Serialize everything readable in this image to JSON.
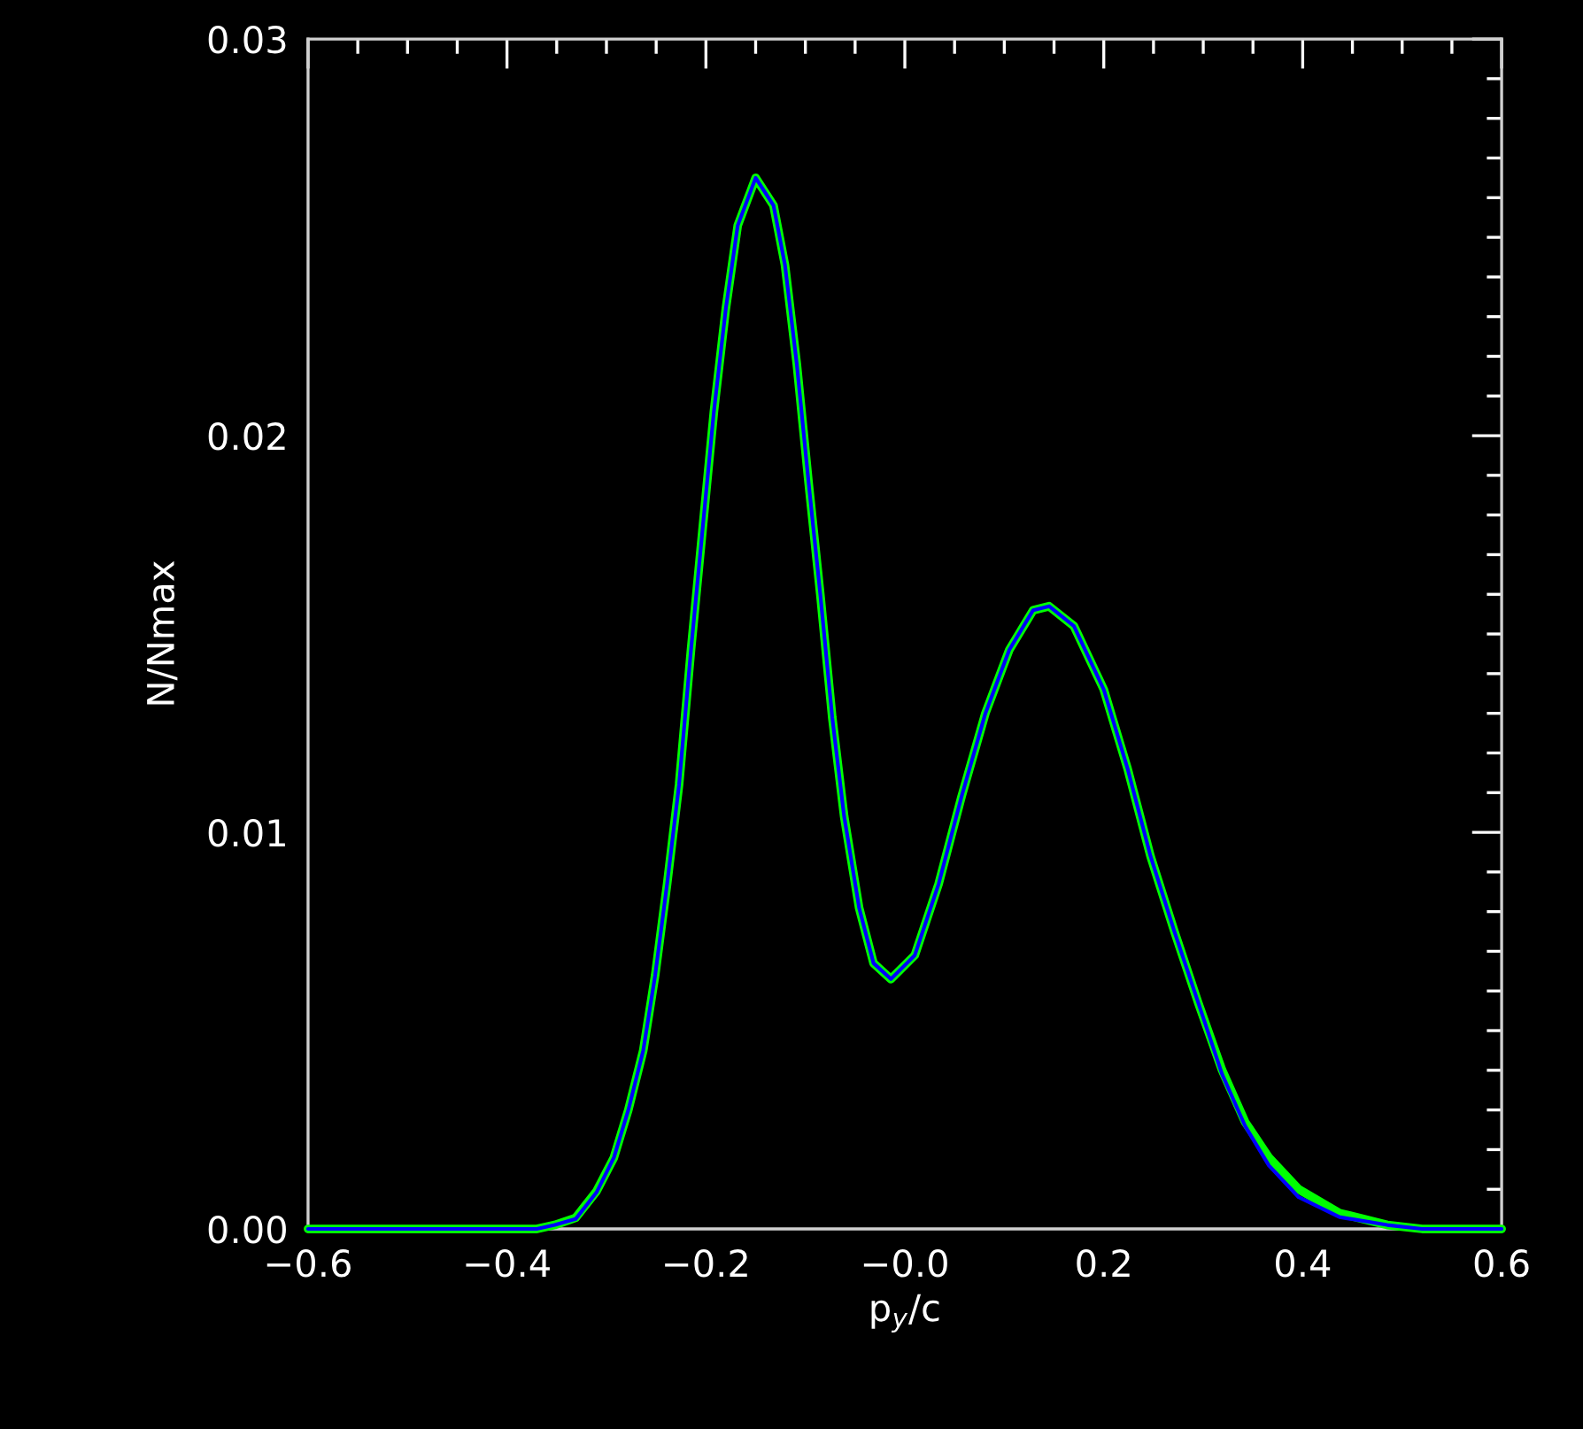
{
  "chart_data": {
    "type": "line",
    "xlabel": "p$_{y}$/c",
    "ylabel": "N/Nmax",
    "xlim": [
      -0.6,
      0.6
    ],
    "ylim": [
      0,
      0.03
    ],
    "xticks": [
      {
        "value": -0.6,
        "label": "−0.6"
      },
      {
        "value": -0.55,
        "label": null
      },
      {
        "value": -0.5,
        "label": null
      },
      {
        "value": -0.45,
        "label": null
      },
      {
        "value": -0.4,
        "label": "−0.4"
      },
      {
        "value": -0.35,
        "label": null
      },
      {
        "value": -0.3,
        "label": null
      },
      {
        "value": -0.25,
        "label": null
      },
      {
        "value": -0.2,
        "label": "−0.2"
      },
      {
        "value": -0.15,
        "label": null
      },
      {
        "value": -0.1,
        "label": null
      },
      {
        "value": -0.05,
        "label": null
      },
      {
        "value": 0,
        "label": "−0.0"
      },
      {
        "value": 0.05,
        "label": null
      },
      {
        "value": 0.1,
        "label": null
      },
      {
        "value": 0.15,
        "label": null
      },
      0.2,
      {
        "value": 0.25,
        "label": null
      },
      {
        "value": 0.3,
        "label": null
      },
      {
        "value": 0.35,
        "label": null
      },
      0.4,
      {
        "value": 0.45,
        "label": null
      },
      {
        "value": 0.5,
        "label": null
      },
      {
        "value": 0.55,
        "label": null
      },
      0.6
    ],
    "yticks": [
      {
        "value": 0,
        "label": "0.00"
      },
      {
        "value": 0.001,
        "label": null
      },
      {
        "value": 0.002,
        "label": null
      },
      {
        "value": 0.003,
        "label": null
      },
      {
        "value": 0.004,
        "label": null
      },
      {
        "value": 0.005,
        "label": null
      },
      {
        "value": 0.006,
        "label": null
      },
      {
        "value": 0.007,
        "label": null
      },
      {
        "value": 0.008,
        "label": null
      },
      {
        "value": 0.009,
        "label": null
      },
      {
        "value": 0.01,
        "label": "0.01"
      },
      {
        "value": 0.011,
        "label": null
      },
      {
        "value": 0.012,
        "label": null
      },
      {
        "value": 0.013,
        "label": null
      },
      {
        "value": 0.014,
        "label": null
      },
      {
        "value": 0.015,
        "label": null
      },
      {
        "value": 0.016,
        "label": null
      },
      {
        "value": 0.017,
        "label": null
      },
      {
        "value": 0.018,
        "label": null
      },
      {
        "value": 0.019,
        "label": null
      },
      {
        "value": 0.02,
        "label": "0.02"
      },
      {
        "value": 0.021,
        "label": null
      },
      {
        "value": 0.022,
        "label": null
      },
      {
        "value": 0.023,
        "label": null
      },
      {
        "value": 0.024,
        "label": null
      },
      {
        "value": 0.025,
        "label": null
      },
      {
        "value": 0.026,
        "label": null
      },
      {
        "value": 0.027,
        "label": null
      },
      {
        "value": 0.028,
        "label": null
      },
      {
        "value": 0.029,
        "label": null
      },
      {
        "value": 0.03,
        "label": "0.03"
      }
    ],
    "x": [
      -0.6,
      -0.37,
      -0.352,
      -0.331,
      -0.31,
      -0.2925,
      -0.278,
      -0.263,
      -0.251,
      -0.239,
      -0.227,
      -0.215,
      -0.2035,
      -0.192,
      -0.18,
      -0.168,
      -0.15,
      -0.132,
      -0.1205,
      -0.1086,
      -0.0967,
      -0.085,
      -0.073,
      -0.061,
      -0.046,
      -0.0315,
      -0.014,
      0.01,
      0.034,
      0.057,
      0.081,
      0.105,
      0.129,
      0.145,
      0.17,
      0.2,
      0.224,
      0.247,
      0.271,
      0.295,
      0.319,
      0.342,
      0.366,
      0.396,
      0.437,
      0.485,
      0.52,
      0.6
    ],
    "series": [
      {
        "color": "#00ff00",
        "values": [
          0,
          0,
          0.0001,
          0.00028,
          0.00095,
          0.0018,
          0.003,
          0.0045,
          0.0064,
          0.0087,
          0.0112,
          0.0146,
          0.0176,
          0.0206,
          0.0232,
          0.0253,
          0.0265,
          0.0258,
          0.0243,
          0.0218,
          0.0188,
          0.016,
          0.0129,
          0.0104,
          0.0081,
          0.0067,
          0.0063,
          0.0069,
          0.0087,
          0.0109,
          0.013,
          0.0146,
          0.0156,
          0.0157,
          0.0152,
          0.0136,
          0.0116,
          0.0094,
          0.0075,
          0.0057,
          0.004,
          0.0027,
          0.0018,
          0.001,
          0.0004,
          0.0001,
          0,
          0
        ]
      },
      {
        "color": "#0000ff",
        "values": [
          0,
          0,
          0.0001,
          0.00025,
          0.00092,
          0.0018,
          0.003,
          0.0045,
          0.0064,
          0.0087,
          0.0112,
          0.0146,
          0.0176,
          0.0206,
          0.0232,
          0.0253,
          0.0265,
          0.0258,
          0.0243,
          0.0218,
          0.0188,
          0.016,
          0.0129,
          0.0104,
          0.0081,
          0.0067,
          0.0063,
          0.0069,
          0.0087,
          0.0109,
          0.013,
          0.0146,
          0.0156,
          0.0157,
          0.0152,
          0.0136,
          0.0116,
          0.0094,
          0.0075,
          0.0057,
          0.0039,
          0.0026,
          0.0016,
          0.0008,
          0.0003,
          0.0001,
          0,
          0
        ]
      }
    ]
  }
}
